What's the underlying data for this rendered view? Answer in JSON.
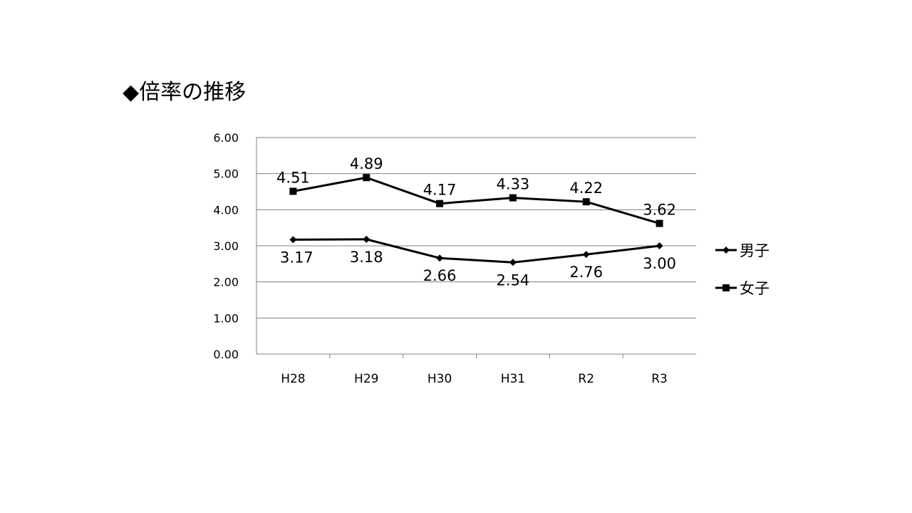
{
  "title": "◆倍率の推移",
  "chart_data": {
    "type": "line",
    "categories": [
      "H28",
      "H29",
      "H30",
      "H31",
      "R2",
      "R3"
    ],
    "series": [
      {
        "name": "男子",
        "values": [
          3.17,
          3.18,
          2.66,
          2.54,
          2.76,
          3.0
        ],
        "value_labels": [
          "3.17",
          "3.18",
          "2.66",
          "2.54",
          "2.76",
          "3.00"
        ],
        "marker": "diamond",
        "color": "#000000"
      },
      {
        "name": "女子",
        "values": [
          4.51,
          4.89,
          4.17,
          4.33,
          4.22,
          3.62
        ],
        "value_labels": [
          "4.51",
          "4.89",
          "4.17",
          "4.33",
          "4.22",
          "3.62"
        ],
        "marker": "square",
        "color": "#000000"
      }
    ],
    "ylim": [
      0,
      6
    ],
    "yticks": [
      "0.00",
      "1.00",
      "2.00",
      "3.00",
      "4.00",
      "5.00",
      "6.00"
    ],
    "grid": true,
    "gridColor": "#808080",
    "legend": "right",
    "xlabel": "",
    "ylabel": ""
  }
}
